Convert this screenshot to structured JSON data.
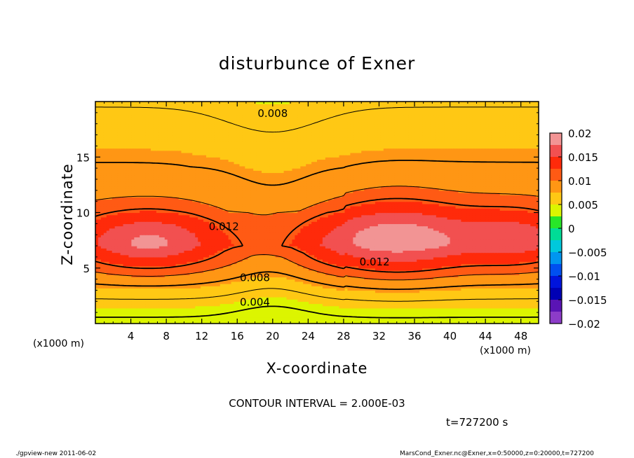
{
  "chart_data": {
    "type": "heatmap",
    "title": "disturbunce of Exner",
    "xlabel": "X-coordinate",
    "ylabel": "Z-coordinate",
    "x_unit_left": "(x1000 m)",
    "x_unit_right": "(x1000 m)",
    "xlim": [
      0,
      50
    ],
    "ylim": [
      0,
      20
    ],
    "x_ticks": [
      4,
      8,
      12,
      16,
      20,
      24,
      28,
      32,
      36,
      40,
      44,
      48
    ],
    "x_tick_labels": [
      "4",
      "8",
      "12",
      "16",
      "20",
      "24",
      "28",
      "32",
      "36",
      "40",
      "44",
      "48"
    ],
    "y_ticks": [
      5,
      10,
      15
    ],
    "y_tick_labels": [
      "5",
      "10",
      "15"
    ],
    "colorbar": {
      "ticks": [
        0.02,
        0.015,
        0.01,
        0.005,
        0,
        -0.005,
        -0.01,
        -0.015,
        -0.02
      ],
      "tick_labels": [
        "0.02",
        "0.015",
        "0.01",
        "0.005",
        "0",
        "−0.005",
        "−0.01",
        "−0.015",
        "−0.02"
      ],
      "bands": [
        {
          "range": [
            0.0175,
            0.02
          ],
          "color": "#f29494"
        },
        {
          "range": [
            0.015,
            0.0175
          ],
          "color": "#f25050"
        },
        {
          "range": [
            0.0125,
            0.015
          ],
          "color": "#ff2a0a"
        },
        {
          "range": [
            0.01,
            0.0125
          ],
          "color": "#ff5a14"
        },
        {
          "range": [
            0.0075,
            0.01
          ],
          "color": "#ff9614"
        },
        {
          "range": [
            0.005,
            0.0075
          ],
          "color": "#ffc814"
        },
        {
          "range": [
            0.0025,
            0.005
          ],
          "color": "#dcf500"
        },
        {
          "range": [
            0,
            0.0025
          ],
          "color": "#28e628"
        },
        {
          "range": [
            -0.0025,
            0
          ],
          "color": "#00dc96"
        },
        {
          "range": [
            -0.005,
            -0.0025
          ],
          "color": "#00c8dc"
        },
        {
          "range": [
            -0.0075,
            -0.005
          ],
          "color": "#0096f0"
        },
        {
          "range": [
            -0.01,
            -0.0075
          ],
          "color": "#0050f0"
        },
        {
          "range": [
            -0.0125,
            -0.01
          ],
          "color": "#0014dc"
        },
        {
          "range": [
            -0.015,
            -0.0125
          ],
          "color": "#0000b4"
        },
        {
          "range": [
            -0.0175,
            -0.015
          ],
          "color": "#5a14b4"
        },
        {
          "range": [
            -0.02,
            -0.0175
          ],
          "color": "#8c3cc8"
        }
      ]
    },
    "contour_levels": [
      0.002,
      0.004,
      0.006,
      0.008,
      0.01,
      0.012
    ],
    "contour_labels": [
      {
        "text": "0.008",
        "x": 20,
        "z": 19.0
      },
      {
        "text": "0.012",
        "x": 14.5,
        "z": 8.8
      },
      {
        "text": "0.012",
        "x": 31.5,
        "z": 5.6
      },
      {
        "text": "0.008",
        "x": 18,
        "z": 4.2
      },
      {
        "text": "0.004",
        "x": 18,
        "z": 2.0
      }
    ]
  },
  "contour_interval_text": "CONTOUR INTERVAL = 2.000E-03",
  "time_text": "t=727200 s",
  "footer_left": "./gpview-new   2011-06-02",
  "footer_right": "MarsCond_Exner.nc@Exner,x=0:50000,z=0:20000,t=727200"
}
